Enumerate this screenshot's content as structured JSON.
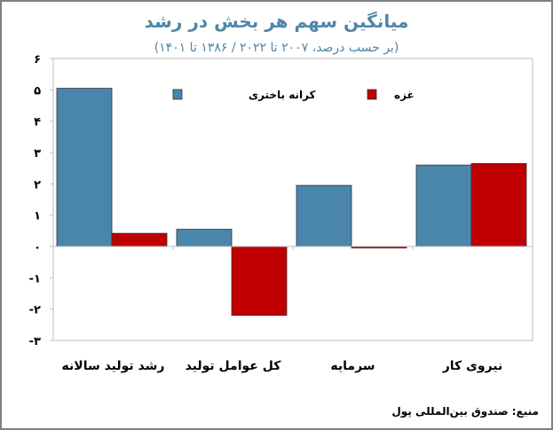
{
  "title": "میانگین سهم هر بخش در رشد",
  "subtitle": "(بر حسب درصد، ۲۰۰۷ تا ۲۰۲۲  /  ۱۳۸۶ تا ۱۴۰۱)",
  "source": "منبع: صندوق بین‌المللی پول",
  "chart_data": {
    "type": "bar",
    "title": "میانگین سهم هر بخش در رشد",
    "subtitle": "(بر حسب درصد، ۲۰۰۷ تا ۲۰۲۲  /  ۱۳۸۶ تا ۱۴۰۱)",
    "categories": [
      "رشد تولید سالانه",
      "کل عوامل تولید",
      "سرمایه",
      "نیروی کار"
    ],
    "series": [
      {
        "name": "کرانه باختری",
        "color": "#4a86ab",
        "values": [
          5.05,
          0.55,
          1.95,
          2.6
        ]
      },
      {
        "name": "غزه",
        "color": "#c00000",
        "values": [
          0.42,
          -2.2,
          -0.05,
          2.65
        ]
      }
    ],
    "ylim": [
      -3,
      6
    ],
    "yticks": [
      6,
      5,
      4,
      3,
      2,
      1,
      0,
      -1,
      -2,
      -3
    ],
    "ytick_labels": [
      "۶",
      "۵",
      "۴",
      "۳",
      "۲",
      "۱",
      "۰",
      "-۱",
      "-۲",
      "-۳"
    ],
    "grid": false,
    "legend_placement": "top"
  }
}
